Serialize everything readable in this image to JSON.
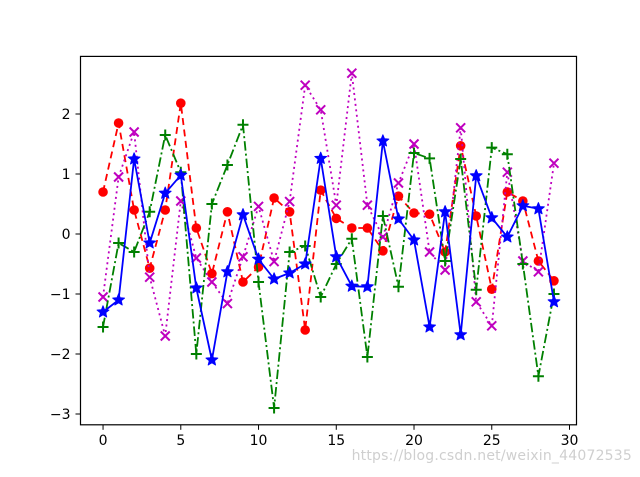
{
  "watermark": "https://blog.csdn.net/weixin_44072535",
  "colors": {
    "red": "#FF0000",
    "magenta": "#BF00BF",
    "green": "#008000",
    "blue": "#0000FF",
    "axis": "#000000",
    "background": "#FFFFFF",
    "watermark_gray": "#CFCFCF"
  },
  "chart_data": {
    "type": "line",
    "title": "",
    "xlabel": "",
    "ylabel": "",
    "grid": false,
    "legend_position": "none",
    "x": [
      0,
      1,
      2,
      3,
      4,
      5,
      6,
      7,
      8,
      9,
      10,
      11,
      12,
      13,
      14,
      15,
      16,
      17,
      18,
      19,
      20,
      21,
      22,
      23,
      24,
      25,
      26,
      27,
      28,
      29
    ],
    "series": [
      {
        "name": "red-dashed-circles",
        "color": "#FF0000",
        "linestyle": "dashed",
        "marker": "circle",
        "values": [
          0.7,
          1.85,
          0.4,
          -0.57,
          0.4,
          2.18,
          0.1,
          -0.66,
          0.37,
          -0.8,
          -0.55,
          0.6,
          0.37,
          -1.6,
          0.73,
          0.26,
          0.1,
          0.1,
          -0.28,
          0.63,
          0.35,
          0.33,
          -0.3,
          1.47,
          0.3,
          -0.92,
          0.7,
          0.55,
          -0.45,
          -0.78
        ]
      },
      {
        "name": "magenta-dotted-x",
        "color": "#BF00BF",
        "linestyle": "dotted",
        "marker": "x",
        "values": [
          -1.05,
          0.95,
          1.7,
          -0.72,
          -1.7,
          0.55,
          -0.4,
          -0.8,
          -1.16,
          -0.38,
          0.46,
          -0.46,
          0.54,
          2.48,
          2.07,
          0.48,
          2.68,
          0.48,
          -0.05,
          0.85,
          1.5,
          -0.3,
          -0.6,
          1.77,
          -1.13,
          -1.53,
          1.03,
          -0.45,
          -0.63,
          1.18
        ]
      },
      {
        "name": "green-dashdot-plus",
        "color": "#008000",
        "linestyle": "dashdot",
        "marker": "plus",
        "values": [
          -1.55,
          -0.15,
          -0.3,
          0.37,
          1.65,
          1.03,
          -2.0,
          0.5,
          1.15,
          1.82,
          -0.8,
          -2.9,
          -0.3,
          -0.2,
          -1.05,
          -0.5,
          -0.08,
          -2.05,
          0.3,
          -0.88,
          1.35,
          1.26,
          -0.45,
          1.25,
          -0.93,
          1.44,
          1.33,
          -0.5,
          -2.37,
          -1.0
        ]
      },
      {
        "name": "blue-solid-stars",
        "color": "#0000FF",
        "linestyle": "solid",
        "marker": "star",
        "values": [
          -1.3,
          -1.1,
          1.25,
          -0.15,
          0.68,
          0.98,
          -0.9,
          -2.1,
          -0.63,
          0.32,
          -0.42,
          -0.75,
          -0.65,
          -0.5,
          1.26,
          -0.38,
          -0.87,
          -0.88,
          1.55,
          0.25,
          -0.1,
          -1.55,
          0.37,
          -1.68,
          0.97,
          0.27,
          -0.05,
          0.47,
          0.42,
          -1.13
        ]
      }
    ],
    "xticks": [
      0,
      5,
      10,
      15,
      20,
      25,
      30
    ],
    "yticks": [
      2,
      1,
      0,
      -1,
      -2,
      -3
    ],
    "xtick_labels": [
      "0",
      "5",
      "10",
      "15",
      "20",
      "25",
      "30"
    ],
    "ytick_labels": [
      "2",
      "1",
      "0",
      "−1",
      "−2",
      "−3"
    ],
    "xlim": [
      -1.45,
      30.45
    ],
    "ylim": [
      -3.18,
      2.96
    ]
  }
}
